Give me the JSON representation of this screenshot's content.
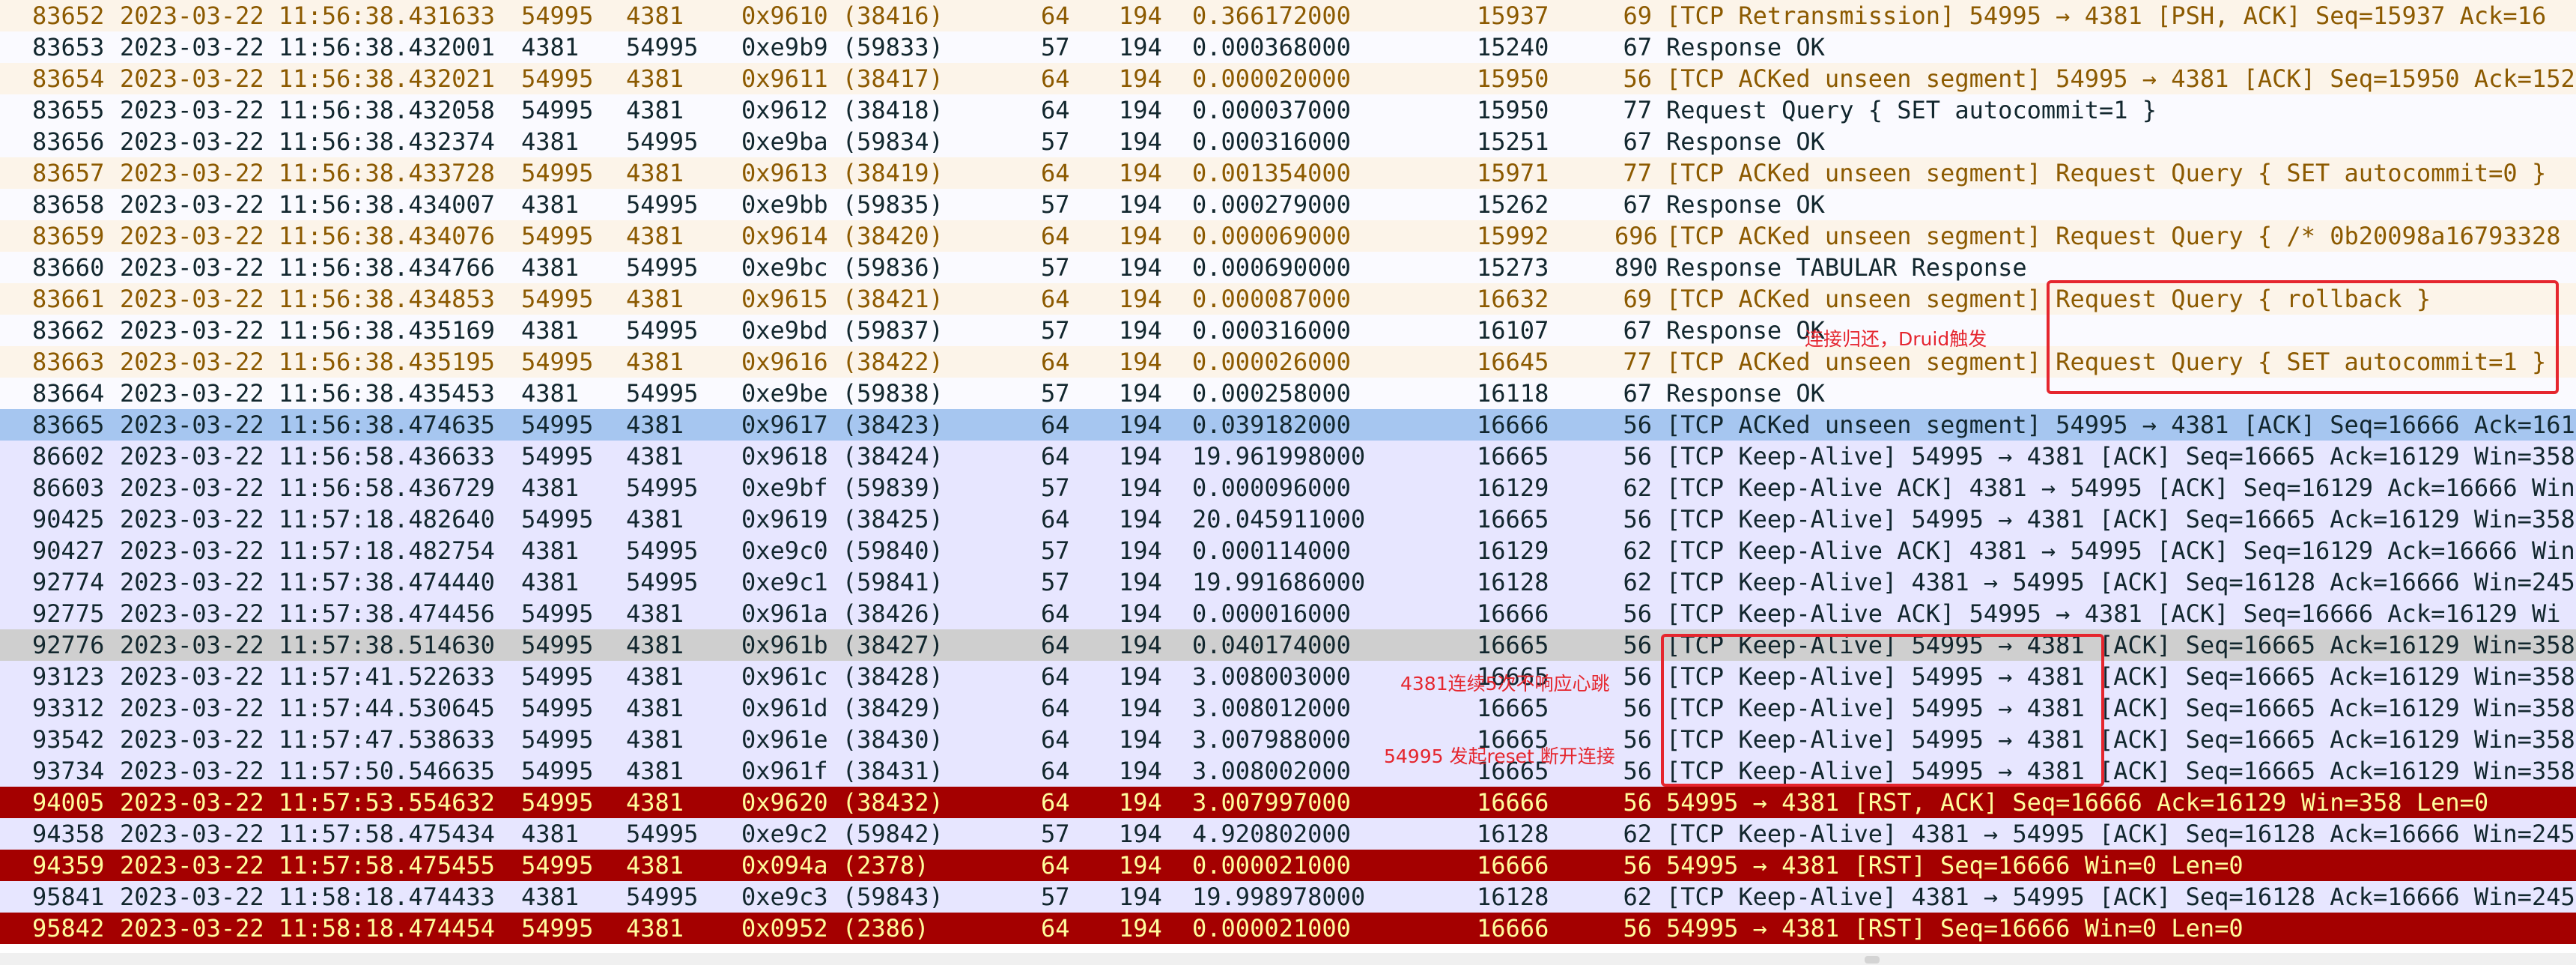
{
  "rows": [
    {
      "no": "83652",
      "time": "2023-03-22 11:56:38.431633",
      "src": "54995",
      "dst": "4381",
      "id": "0x9610 (38416)",
      "ttl": "64",
      "len": "194",
      "delta": "0.366172000",
      "seq": "15937",
      "flen": "69",
      "info": "[TCP Retransmission] 54995 → 4381 [PSH, ACK] Seq=15937 Ack=16",
      "style": "retx"
    },
    {
      "no": "83653",
      "time": "2023-03-22 11:56:38.432001",
      "src": "4381",
      "dst": "54995",
      "id": "0xe9b9 (59833)",
      "ttl": "57",
      "len": "194",
      "delta": "0.000368000",
      "seq": "15240",
      "flen": "67",
      "info": "Response  OK",
      "style": "mysql"
    },
    {
      "no": "83654",
      "time": "2023-03-22 11:56:38.432021",
      "src": "54995",
      "dst": "4381",
      "id": "0x9611 (38417)",
      "ttl": "64",
      "len": "194",
      "delta": "0.000020000",
      "seq": "15950",
      "flen": "56",
      "info": "[TCP ACKed unseen segment] 54995 → 4381 [ACK] Seq=15950 Ack=152",
      "style": "retx"
    },
    {
      "no": "83655",
      "time": "2023-03-22 11:56:38.432058",
      "src": "54995",
      "dst": "4381",
      "id": "0x9612 (38418)",
      "ttl": "64",
      "len": "194",
      "delta": "0.000037000",
      "seq": "15950",
      "flen": "77",
      "info": "Request Query { SET autocommit=1 }",
      "style": "mysql"
    },
    {
      "no": "83656",
      "time": "2023-03-22 11:56:38.432374",
      "src": "4381",
      "dst": "54995",
      "id": "0xe9ba (59834)",
      "ttl": "57",
      "len": "194",
      "delta": "0.000316000",
      "seq": "15251",
      "flen": "67",
      "info": "Response  OK",
      "style": "mysql"
    },
    {
      "no": "83657",
      "time": "2023-03-22 11:56:38.433728",
      "src": "54995",
      "dst": "4381",
      "id": "0x9613 (38419)",
      "ttl": "64",
      "len": "194",
      "delta": "0.001354000",
      "seq": "15971",
      "flen": "77",
      "info": "[TCP ACKed unseen segment] Request Query { SET autocommit=0 }",
      "style": "retx"
    },
    {
      "no": "83658",
      "time": "2023-03-22 11:56:38.434007",
      "src": "4381",
      "dst": "54995",
      "id": "0xe9bb (59835)",
      "ttl": "57",
      "len": "194",
      "delta": "0.000279000",
      "seq": "15262",
      "flen": "67",
      "info": "Response  OK",
      "style": "mysql"
    },
    {
      "no": "83659",
      "time": "2023-03-22 11:56:38.434076",
      "src": "54995",
      "dst": "4381",
      "id": "0x9614 (38420)",
      "ttl": "64",
      "len": "194",
      "delta": "0.000069000",
      "seq": "15992",
      "flen": "696",
      "info": "[TCP ACKed unseen segment] Request Query { /* 0b20098a16793328",
      "style": "retx"
    },
    {
      "no": "83660",
      "time": "2023-03-22 11:56:38.434766",
      "src": "4381",
      "dst": "54995",
      "id": "0xe9bc (59836)",
      "ttl": "57",
      "len": "194",
      "delta": "0.000690000",
      "seq": "15273",
      "flen": "890",
      "info": "Response TABULAR Response",
      "style": "mysql"
    },
    {
      "no": "83661",
      "time": "2023-03-22 11:56:38.434853",
      "src": "54995",
      "dst": "4381",
      "id": "0x9615 (38421)",
      "ttl": "64",
      "len": "194",
      "delta": "0.000087000",
      "seq": "16632",
      "flen": "69",
      "info": "[TCP ACKed unseen segment] Request Query { rollback }",
      "style": "retx"
    },
    {
      "no": "83662",
      "time": "2023-03-22 11:56:38.435169",
      "src": "4381",
      "dst": "54995",
      "id": "0xe9bd (59837)",
      "ttl": "57",
      "len": "194",
      "delta": "0.000316000",
      "seq": "16107",
      "flen": "67",
      "info": "Response  OK",
      "style": "mysql"
    },
    {
      "no": "83663",
      "time": "2023-03-22 11:56:38.435195",
      "src": "54995",
      "dst": "4381",
      "id": "0x9616 (38422)",
      "ttl": "64",
      "len": "194",
      "delta": "0.000026000",
      "seq": "16645",
      "flen": "77",
      "info": "[TCP ACKed unseen segment] Request Query { SET autocommit=1 }",
      "style": "retx"
    },
    {
      "no": "83664",
      "time": "2023-03-22 11:56:38.435453",
      "src": "4381",
      "dst": "54995",
      "id": "0xe9be (59838)",
      "ttl": "57",
      "len": "194",
      "delta": "0.000258000",
      "seq": "16118",
      "flen": "67",
      "info": "Response  OK",
      "style": "mysql"
    },
    {
      "no": "83665",
      "time": "2023-03-22 11:56:38.474635",
      "src": "54995",
      "dst": "4381",
      "id": "0x9617 (38423)",
      "ttl": "64",
      "len": "194",
      "delta": "0.039182000",
      "seq": "16666",
      "flen": "56",
      "info": "[TCP ACKed unseen segment] 54995 → 4381 [ACK] Seq=16666 Ack=161",
      "style": "sel"
    },
    {
      "no": "86602",
      "time": "2023-03-22 11:56:58.436633",
      "src": "54995",
      "dst": "4381",
      "id": "0x9618 (38424)",
      "ttl": "64",
      "len": "194",
      "delta": "19.961998000",
      "seq": "16665",
      "flen": "56",
      "info": "[TCP Keep-Alive] 54995 → 4381 [ACK] Seq=16665 Ack=16129 Win=358",
      "style": "tcp"
    },
    {
      "no": "86603",
      "time": "2023-03-22 11:56:58.436729",
      "src": "4381",
      "dst": "54995",
      "id": "0xe9bf (59839)",
      "ttl": "57",
      "len": "194",
      "delta": "0.000096000",
      "seq": "16129",
      "flen": "62",
      "info": "[TCP Keep-Alive ACK] 4381 → 54995 [ACK] Seq=16129 Ack=16666 Win",
      "style": "tcp"
    },
    {
      "no": "90425",
      "time": "2023-03-22 11:57:18.482640",
      "src": "54995",
      "dst": "4381",
      "id": "0x9619 (38425)",
      "ttl": "64",
      "len": "194",
      "delta": "20.045911000",
      "seq": "16665",
      "flen": "56",
      "info": "[TCP Keep-Alive] 54995 → 4381 [ACK] Seq=16665 Ack=16129 Win=358",
      "style": "tcp"
    },
    {
      "no": "90427",
      "time": "2023-03-22 11:57:18.482754",
      "src": "4381",
      "dst": "54995",
      "id": "0xe9c0 (59840)",
      "ttl": "57",
      "len": "194",
      "delta": "0.000114000",
      "seq": "16129",
      "flen": "62",
      "info": "[TCP Keep-Alive ACK] 4381 → 54995 [ACK] Seq=16129 Ack=16666 Win",
      "style": "tcp"
    },
    {
      "no": "92774",
      "time": "2023-03-22 11:57:38.474440",
      "src": "4381",
      "dst": "54995",
      "id": "0xe9c1 (59841)",
      "ttl": "57",
      "len": "194",
      "delta": "19.991686000",
      "seq": "16128",
      "flen": "62",
      "info": "[TCP Keep-Alive] 4381 → 54995 [ACK] Seq=16128 Ack=16666 Win=245",
      "style": "tcp"
    },
    {
      "no": "92775",
      "time": "2023-03-22 11:57:38.474456",
      "src": "54995",
      "dst": "4381",
      "id": "0x961a (38426)",
      "ttl": "64",
      "len": "194",
      "delta": "0.000016000",
      "seq": "16666",
      "flen": "56",
      "info": "[TCP Keep-Alive ACK] 54995 → 4381 [ACK] Seq=16666 Ack=16129 Wi",
      "style": "tcp"
    },
    {
      "no": "92776",
      "time": "2023-03-22 11:57:38.514630",
      "src": "54995",
      "dst": "4381",
      "id": "0x961b (38427)",
      "ttl": "64",
      "len": "194",
      "delta": "0.040174000",
      "seq": "16665",
      "flen": "56",
      "info": "[TCP Keep-Alive] 54995 → 4381 [ACK] Seq=16665 Ack=16129 Win=358",
      "style": "gray"
    },
    {
      "no": "93123",
      "time": "2023-03-22 11:57:41.522633",
      "src": "54995",
      "dst": "4381",
      "id": "0x961c (38428)",
      "ttl": "64",
      "len": "194",
      "delta": "3.008003000",
      "seq": "16665",
      "flen": "56",
      "info": "[TCP Keep-Alive] 54995 → 4381 [ACK] Seq=16665 Ack=16129 Win=358",
      "style": "tcp"
    },
    {
      "no": "93312",
      "time": "2023-03-22 11:57:44.530645",
      "src": "54995",
      "dst": "4381",
      "id": "0x961d (38429)",
      "ttl": "64",
      "len": "194",
      "delta": "3.008012000",
      "seq": "16665",
      "flen": "56",
      "info": "[TCP Keep-Alive] 54995 → 4381 [ACK] Seq=16665 Ack=16129 Win=358",
      "style": "tcp"
    },
    {
      "no": "93542",
      "time": "2023-03-22 11:57:47.538633",
      "src": "54995",
      "dst": "4381",
      "id": "0x961e (38430)",
      "ttl": "64",
      "len": "194",
      "delta": "3.007988000",
      "seq": "16665",
      "flen": "56",
      "info": "[TCP Keep-Alive] 54995 → 4381 [ACK] Seq=16665 Ack=16129 Win=358",
      "style": "tcp"
    },
    {
      "no": "93734",
      "time": "2023-03-22 11:57:50.546635",
      "src": "54995",
      "dst": "4381",
      "id": "0x961f (38431)",
      "ttl": "64",
      "len": "194",
      "delta": "3.008002000",
      "seq": "16665",
      "flen": "56",
      "info": "[TCP Keep-Alive] 54995 → 4381 [ACK] Seq=16665 Ack=16129 Win=358",
      "style": "tcp"
    },
    {
      "no": "94005",
      "time": "2023-03-22 11:57:53.554632",
      "src": "54995",
      "dst": "4381",
      "id": "0x9620 (38432)",
      "ttl": "64",
      "len": "194",
      "delta": "3.007997000",
      "seq": "16666",
      "flen": "56",
      "info": "54995 → 4381 [RST, ACK] Seq=16666 Ack=16129 Win=358 Len=0",
      "style": "rst"
    },
    {
      "no": "94358",
      "time": "2023-03-22 11:57:58.475434",
      "src": "4381",
      "dst": "54995",
      "id": "0xe9c2 (59842)",
      "ttl": "57",
      "len": "194",
      "delta": "4.920802000",
      "seq": "16128",
      "flen": "62",
      "info": "[TCP Keep-Alive] 4381 → 54995 [ACK] Seq=16128 Ack=16666 Win=245",
      "style": "tcp"
    },
    {
      "no": "94359",
      "time": "2023-03-22 11:57:58.475455",
      "src": "54995",
      "dst": "4381",
      "id": "0x094a (2378)",
      "ttl": "64",
      "len": "194",
      "delta": "0.000021000",
      "seq": "16666",
      "flen": "56",
      "info": "54995 → 4381 [RST] Seq=16666 Win=0 Len=0",
      "style": "rst"
    },
    {
      "no": "95841",
      "time": "2023-03-22 11:58:18.474433",
      "src": "4381",
      "dst": "54995",
      "id": "0xe9c3 (59843)",
      "ttl": "57",
      "len": "194",
      "delta": "19.998978000",
      "seq": "16128",
      "flen": "62",
      "info": "[TCP Keep-Alive] 4381 → 54995 [ACK] Seq=16128 Ack=16666 Win=245",
      "style": "tcp"
    },
    {
      "no": "95842",
      "time": "2023-03-22 11:58:18.474454",
      "src": "54995",
      "dst": "4381",
      "id": "0x0952 (2386)",
      "ttl": "64",
      "len": "194",
      "delta": "0.000021000",
      "seq": "16666",
      "flen": "56",
      "info": "54995 → 4381 [RST] Seq=16666 Win=0 Len=0",
      "style": "rst"
    }
  ],
  "annotations": {
    "note_pool_return": "连接归还，Druid触发",
    "note_no_heartbeat": "4381连续5次不响应心跳",
    "note_reset": "54995 发起reset 断开连接"
  },
  "colors": {
    "annotation_red": "#e5262e",
    "rst_bg": "#a40000",
    "rst_fg": "#fffc9c",
    "selected_bg": "#a6c6f0",
    "tcp_bg": "#e7e6ff",
    "retx_fg": "#8c5a00"
  }
}
